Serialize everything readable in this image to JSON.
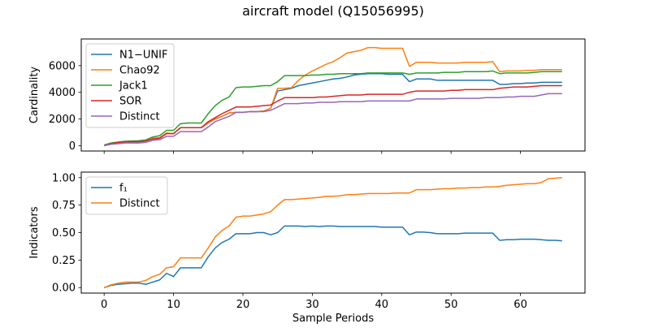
{
  "figure": {
    "title": "aircraft model (Q15056995)"
  },
  "chart_data": [
    {
      "type": "line",
      "title": "aircraft model (Q15056995)",
      "xlabel": "",
      "ylabel": "Cardinality",
      "xlim": [
        -3.3,
        69.3
      ],
      "ylim": [
        -400,
        8000
      ],
      "xticks": [
        0,
        10,
        20,
        30,
        40,
        50,
        60
      ],
      "xtick_labels_visible": false,
      "yticks": [
        0,
        2000,
        4000,
        6000
      ],
      "ytick_labels": [
        "0",
        "2000",
        "4000",
        "6000"
      ],
      "grid": false,
      "legend_position": "upper left",
      "x": [
        0,
        1,
        2,
        3,
        4,
        5,
        6,
        7,
        8,
        9,
        10,
        11,
        12,
        13,
        14,
        15,
        16,
        17,
        18,
        19,
        20,
        21,
        22,
        23,
        24,
        25,
        26,
        27,
        28,
        29,
        30,
        31,
        32,
        33,
        34,
        35,
        36,
        37,
        38,
        39,
        40,
        41,
        42,
        43,
        44,
        45,
        46,
        47,
        48,
        49,
        50,
        51,
        52,
        53,
        54,
        55,
        56,
        57,
        58,
        59,
        60,
        61,
        62,
        63,
        64,
        65,
        66
      ],
      "series": [
        {
          "name": "N1−UNIF",
          "color": "#1f77b4",
          "values": [
            0,
            150,
            220,
            280,
            300,
            300,
            350,
            550,
            600,
            950,
            900,
            1350,
            1350,
            1350,
            1350,
            1700,
            2000,
            2200,
            2450,
            2500,
            2500,
            2550,
            2550,
            2600,
            2800,
            4100,
            4200,
            4300,
            4500,
            4600,
            4700,
            4800,
            4900,
            5000,
            5050,
            5150,
            5300,
            5350,
            5400,
            5400,
            5400,
            5350,
            5350,
            5350,
            4800,
            5000,
            5000,
            5000,
            4900,
            4900,
            4900,
            4900,
            4900,
            4900,
            4900,
            4900,
            4900,
            4600,
            4600,
            4650,
            4650,
            4700,
            4700,
            4750,
            4750,
            4750,
            4750
          ]
        },
        {
          "name": "Chao92",
          "color": "#ff7f0e",
          "values": [
            0,
            150,
            220,
            280,
            300,
            300,
            350,
            550,
            600,
            950,
            900,
            1350,
            1350,
            1350,
            1350,
            1700,
            2000,
            2200,
            2450,
            2500,
            2500,
            2550,
            2550,
            2600,
            2800,
            4300,
            4300,
            4350,
            4900,
            5300,
            5600,
            5850,
            6100,
            6300,
            6600,
            6950,
            7050,
            7150,
            7350,
            7350,
            7300,
            7300,
            7300,
            7300,
            5950,
            6250,
            6250,
            6250,
            6200,
            6200,
            6200,
            6200,
            6250,
            6250,
            6250,
            6250,
            6300,
            5550,
            5600,
            5600,
            5600,
            5650,
            5650,
            5700,
            5700,
            5700,
            5700
          ]
        },
        {
          "name": "Jack1",
          "color": "#2ca02c",
          "values": [
            50,
            200,
            270,
            330,
            350,
            370,
            430,
            650,
            750,
            1150,
            1150,
            1650,
            1700,
            1700,
            1700,
            2400,
            3000,
            3400,
            3650,
            4350,
            4400,
            4400,
            4450,
            4500,
            4500,
            4800,
            5250,
            5250,
            5250,
            5250,
            5300,
            5300,
            5350,
            5350,
            5400,
            5400,
            5400,
            5400,
            5450,
            5450,
            5450,
            5450,
            5450,
            5450,
            5350,
            5450,
            5450,
            5450,
            5450,
            5500,
            5500,
            5500,
            5550,
            5550,
            5550,
            5550,
            5600,
            5400,
            5450,
            5450,
            5450,
            5450,
            5500,
            5550,
            5550,
            5550,
            5550
          ]
        },
        {
          "name": "SOR",
          "color": "#d62728",
          "values": [
            0,
            150,
            250,
            300,
            300,
            300,
            350,
            500,
            550,
            900,
            900,
            1350,
            1350,
            1350,
            1350,
            1800,
            2100,
            2400,
            2650,
            2900,
            2900,
            2900,
            2950,
            3000,
            3050,
            3350,
            3600,
            3600,
            3600,
            3600,
            3600,
            3650,
            3650,
            3700,
            3750,
            3800,
            3800,
            3800,
            3850,
            3850,
            3850,
            3850,
            3850,
            3850,
            4000,
            4100,
            4100,
            4100,
            4100,
            4100,
            4150,
            4150,
            4200,
            4200,
            4200,
            4200,
            4200,
            4300,
            4350,
            4400,
            4400,
            4400,
            4450,
            4500,
            4500,
            4500,
            4500
          ]
        },
        {
          "name": "Distinct",
          "color": "#9467bd",
          "values": [
            0,
            100,
            150,
            200,
            200,
            200,
            250,
            400,
            450,
            700,
            700,
            1050,
            1050,
            1050,
            1050,
            1400,
            1800,
            2000,
            2200,
            2500,
            2500,
            2550,
            2550,
            2550,
            2650,
            2900,
            3150,
            3150,
            3150,
            3200,
            3200,
            3250,
            3250,
            3250,
            3300,
            3300,
            3300,
            3300,
            3350,
            3350,
            3350,
            3350,
            3350,
            3350,
            3350,
            3500,
            3500,
            3500,
            3500,
            3500,
            3550,
            3550,
            3550,
            3550,
            3550,
            3600,
            3600,
            3600,
            3650,
            3650,
            3700,
            3700,
            3700,
            3800,
            3900,
            3900,
            3900
          ]
        }
      ]
    },
    {
      "type": "line",
      "title": "",
      "xlabel": "Sample Periods",
      "ylabel": "Indicators",
      "xlim": [
        -3.3,
        69.3
      ],
      "ylim": [
        -0.05,
        1.05
      ],
      "xticks": [
        0,
        10,
        20,
        30,
        40,
        50,
        60
      ],
      "xtick_labels": [
        "0",
        "10",
        "20",
        "30",
        "40",
        "50",
        "60"
      ],
      "yticks": [
        0,
        0.25,
        0.5,
        0.75,
        1.0
      ],
      "ytick_labels": [
        "0.00",
        "0.25",
        "0.50",
        "0.75",
        "1.00"
      ],
      "grid": false,
      "legend_position": "upper left",
      "x": [
        0,
        1,
        2,
        3,
        4,
        5,
        6,
        7,
        8,
        9,
        10,
        11,
        12,
        13,
        14,
        15,
        16,
        17,
        18,
        19,
        20,
        21,
        22,
        23,
        24,
        25,
        26,
        27,
        28,
        29,
        30,
        31,
        32,
        33,
        34,
        35,
        36,
        37,
        38,
        39,
        40,
        41,
        42,
        43,
        44,
        45,
        46,
        47,
        48,
        49,
        50,
        51,
        52,
        53,
        54,
        55,
        56,
        57,
        58,
        59,
        60,
        61,
        62,
        63,
        64,
        65,
        66
      ],
      "series": [
        {
          "name": "f₁",
          "color": "#1f77b4",
          "values": [
            0.0,
            0.02,
            0.03,
            0.035,
            0.04,
            0.04,
            0.03,
            0.05,
            0.07,
            0.13,
            0.1,
            0.18,
            0.18,
            0.18,
            0.18,
            0.28,
            0.36,
            0.41,
            0.44,
            0.49,
            0.49,
            0.49,
            0.5,
            0.5,
            0.48,
            0.5,
            0.56,
            0.56,
            0.56,
            0.555,
            0.56,
            0.555,
            0.56,
            0.56,
            0.555,
            0.555,
            0.555,
            0.555,
            0.555,
            0.555,
            0.55,
            0.55,
            0.55,
            0.55,
            0.48,
            0.505,
            0.505,
            0.5,
            0.49,
            0.49,
            0.49,
            0.49,
            0.495,
            0.495,
            0.495,
            0.495,
            0.495,
            0.43,
            0.435,
            0.435,
            0.44,
            0.44,
            0.44,
            0.435,
            0.43,
            0.43,
            0.425
          ]
        },
        {
          "name": "Distinct",
          "color": "#ff7f0e",
          "values": [
            0.0,
            0.025,
            0.04,
            0.05,
            0.05,
            0.05,
            0.065,
            0.1,
            0.12,
            0.18,
            0.19,
            0.27,
            0.27,
            0.27,
            0.27,
            0.36,
            0.46,
            0.52,
            0.56,
            0.64,
            0.65,
            0.65,
            0.66,
            0.67,
            0.69,
            0.75,
            0.8,
            0.8,
            0.805,
            0.81,
            0.815,
            0.82,
            0.83,
            0.83,
            0.835,
            0.845,
            0.845,
            0.85,
            0.855,
            0.855,
            0.855,
            0.855,
            0.86,
            0.86,
            0.86,
            0.89,
            0.89,
            0.89,
            0.895,
            0.9,
            0.9,
            0.905,
            0.905,
            0.91,
            0.91,
            0.915,
            0.915,
            0.92,
            0.93,
            0.935,
            0.94,
            0.945,
            0.945,
            0.955,
            0.99,
            0.995,
            1.0
          ]
        }
      ]
    }
  ]
}
